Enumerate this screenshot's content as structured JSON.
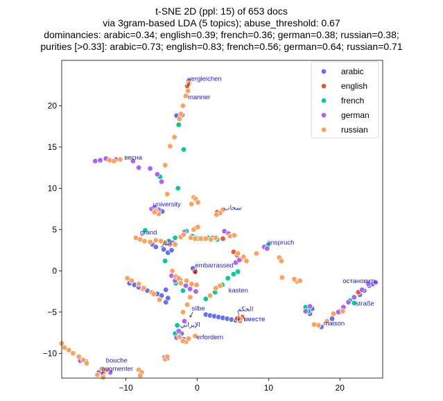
{
  "chart_data": {
    "type": "scatter",
    "title_lines": [
      "t-SNE 2D (ppl: 15) of 653 docs",
      "via 3gram-based LDA (5 topics); abuse_threshold: 0.67",
      "dominancies: arabic=0.34; english=0.39; french=0.36; german=0.38; russian=0.38;",
      "purities [>0.33]: arabic=0.73; english=0.83; french=0.56; german=0.64; russian=0.71"
    ],
    "xlim": [
      -19,
      26
    ],
    "ylim": [
      -13,
      25.5
    ],
    "xticks": [
      -10,
      0,
      10,
      20
    ],
    "yticks": [
      -10,
      -5,
      0,
      5,
      10,
      15,
      20
    ],
    "legend_position": "top-right",
    "series": [
      {
        "name": "arabic",
        "color": "#636efa",
        "points": [
          [
            -9.5,
            -1.5
          ],
          [
            -8.8,
            -1.7
          ],
          [
            -8.2,
            -2.0
          ],
          [
            -7.6,
            -2.2
          ],
          [
            -7.0,
            -2.4
          ],
          [
            -6.3,
            -2.6
          ],
          [
            -5.6,
            -2.8
          ],
          [
            -5.0,
            -3.0
          ],
          [
            -4.4,
            -3.8
          ],
          [
            -6.3,
            3.2
          ],
          [
            -5.8,
            2.9
          ],
          [
            -4.7,
            2.6
          ],
          [
            -4.1,
            2.2
          ],
          [
            -3.6,
            2.5
          ],
          [
            -4.4,
            -2.3
          ],
          [
            -4.1,
            -3.3
          ],
          [
            -2.2,
            -7.6
          ],
          [
            -2.8,
            -7.9
          ],
          [
            -1.9,
            -8.3
          ],
          [
            -2.9,
            18.8
          ],
          [
            -2.1,
            18.9
          ],
          [
            -4.2,
            -10.6
          ],
          [
            1.2,
            -5.3
          ],
          [
            1.8,
            -5.4
          ],
          [
            2.4,
            -5.5
          ],
          [
            3.0,
            -5.6
          ],
          [
            3.6,
            -5.7
          ],
          [
            4.2,
            -5.8
          ],
          [
            4.8,
            -5.9
          ],
          [
            5.4,
            -6.0
          ],
          [
            6.0,
            -6.1
          ],
          [
            15.4,
            -4.8
          ],
          [
            15.8,
            -5.2
          ],
          [
            16.1,
            -4.6
          ],
          [
            14.2,
            -1.2
          ],
          [
            17.4,
            -6.8
          ],
          [
            18.9,
            -5.8
          ],
          [
            20.0,
            -4.9
          ],
          [
            22.8,
            -2.9
          ],
          [
            23.4,
            -2.4
          ],
          [
            24.1,
            -1.8
          ],
          [
            24.6,
            -1.6
          ],
          [
            -13.8,
            -12.3
          ],
          [
            -13.2,
            -12.5
          ],
          [
            -0.4,
            0.0
          ],
          [
            -0.6,
            0.3
          ],
          [
            -5.3,
            7.4
          ],
          [
            -4.9,
            7.2
          ]
        ]
      },
      {
        "name": "english",
        "color": "#ef553b",
        "points": [
          [
            -1.2,
            23.0
          ],
          [
            -1.4,
            22.4
          ],
          [
            3.6,
            3.9
          ],
          [
            5.1,
            2.3
          ],
          [
            5.6,
            1.9
          ],
          [
            6.1,
            1.4
          ],
          [
            -0.3,
            -0.1
          ],
          [
            22.6,
            -2.6
          ],
          [
            2.8,
            7.1
          ],
          [
            5.6,
            -5.8
          ],
          [
            6.3,
            -5.6
          ],
          [
            6.0,
            -6.0
          ]
        ]
      },
      {
        "name": "french",
        "color": "#00cc96",
        "points": [
          [
            -2.6,
            17.7
          ],
          [
            -1.9,
            14.7
          ],
          [
            -5.2,
            11.4
          ],
          [
            -2.7,
            10.0
          ],
          [
            -7.3,
            4.9
          ],
          [
            -4.5,
            1.2
          ],
          [
            -1.5,
            4.8
          ],
          [
            -0.7,
            4.2
          ],
          [
            -0.2,
            4.0
          ],
          [
            0.2,
            3.9
          ],
          [
            0.8,
            3.9
          ],
          [
            1.5,
            4.0
          ],
          [
            2.2,
            4.0
          ],
          [
            2.8,
            3.8
          ],
          [
            -3.0,
            -1.5
          ],
          [
            -2.0,
            -2.4
          ],
          [
            1.2,
            -3.4
          ],
          [
            2.5,
            -2.6
          ],
          [
            3.5,
            -1.7
          ],
          [
            4.3,
            -0.9
          ],
          [
            5.1,
            -0.4
          ],
          [
            5.7,
            -0.1
          ],
          [
            -3.1,
            4.0
          ],
          [
            -4.0,
            3.6
          ],
          [
            15.2,
            -4.4
          ],
          [
            15.6,
            -4.9
          ],
          [
            21.4,
            -3.6
          ],
          [
            22.0,
            -3.9
          ],
          [
            -2.8,
            -6.6
          ],
          [
            -3.1,
            -7.6
          ],
          [
            9.6,
            2.8
          ],
          [
            9.9,
            3.1
          ]
        ]
      },
      {
        "name": "german",
        "color": "#ab63fa",
        "points": [
          [
            -14.3,
            13.3
          ],
          [
            -13.6,
            13.4
          ],
          [
            -12.8,
            13.6
          ],
          [
            -11.4,
            13.5
          ],
          [
            -9.0,
            13.3
          ],
          [
            -8.2,
            12.5
          ],
          [
            -6.6,
            12.4
          ],
          [
            -5.6,
            11.7
          ],
          [
            -5.0,
            10.8
          ],
          [
            -6.4,
            7.5
          ],
          [
            -6.0,
            7.7
          ],
          [
            -5.4,
            7.4
          ],
          [
            -1.8,
            4.7
          ],
          [
            -2.4,
            4.1
          ],
          [
            -3.4,
            3.4
          ],
          [
            -3.6,
            -0.6
          ],
          [
            -3.1,
            -1.2
          ],
          [
            -2.4,
            -1.1
          ],
          [
            -1.6,
            -1.8
          ],
          [
            -1.0,
            -2.2
          ],
          [
            -0.2,
            -2.5
          ],
          [
            3.8,
            4.8
          ],
          [
            4.4,
            4.5
          ],
          [
            5.4,
            1.0
          ],
          [
            5.9,
            1.3
          ],
          [
            9.4,
            2.9
          ],
          [
            9.8,
            2.7
          ],
          [
            15.2,
            -4.9
          ],
          [
            15.8,
            -4.3
          ],
          [
            19.8,
            -5.0
          ],
          [
            20.5,
            -4.4
          ],
          [
            21.2,
            -3.8
          ],
          [
            22.0,
            -3.2
          ],
          [
            23.1,
            -2.3
          ],
          [
            24.0,
            -1.6
          ],
          [
            25.0,
            -1.4
          ],
          [
            -1.8,
            -6.1
          ],
          [
            -2.6,
            -7.3
          ],
          [
            -2.9,
            -8.1
          ],
          [
            -15.6,
            -11.0
          ],
          [
            -16.4,
            -10.9
          ],
          [
            -12.6,
            -12.0
          ],
          [
            -12.2,
            -12.3
          ],
          [
            -4.6,
            -10.5
          ]
        ]
      },
      {
        "name": "russian",
        "color": "#ffa15a",
        "points": [
          [
            -1.2,
            22.7
          ],
          [
            -1.3,
            21.8
          ],
          [
            -1.6,
            21.2
          ],
          [
            -2.0,
            20.0
          ],
          [
            -2.3,
            19.0
          ],
          [
            -2.5,
            18.4
          ],
          [
            -3.2,
            16.2
          ],
          [
            -3.8,
            15.1
          ],
          [
            -4.5,
            12.8
          ],
          [
            -4.2,
            9.3
          ],
          [
            -10.8,
            13.5
          ],
          [
            -11.7,
            13.3
          ],
          [
            -12.3,
            13.4
          ],
          [
            -0.5,
            8.9
          ],
          [
            -0.2,
            8.7
          ],
          [
            0.1,
            8.3
          ],
          [
            -0.8,
            8.1
          ],
          [
            3.6,
            7.4
          ],
          [
            3.2,
            7.0
          ],
          [
            2.7,
            6.8
          ],
          [
            -0.2,
            5.2
          ],
          [
            -0.5,
            5.0
          ],
          [
            0.1,
            5.3
          ],
          [
            -8.6,
            4.0
          ],
          [
            -8.0,
            3.8
          ],
          [
            -7.4,
            3.6
          ],
          [
            -6.6,
            3.5
          ],
          [
            -5.8,
            3.7
          ],
          [
            -5.1,
            3.6
          ],
          [
            -4.5,
            3.4
          ],
          [
            -3.8,
            3.2
          ],
          [
            -3.1,
            3.2
          ],
          [
            -2.3,
            4.1
          ],
          [
            -1.9,
            4.4
          ],
          [
            -0.9,
            4.0
          ],
          [
            -0.3,
            3.9
          ],
          [
            0.5,
            3.9
          ],
          [
            1.2,
            3.9
          ],
          [
            1.9,
            3.8
          ],
          [
            2.6,
            4.0
          ],
          [
            4.6,
            4.2
          ],
          [
            5.2,
            4.3
          ],
          [
            5.7,
            2.1
          ],
          [
            6.5,
            1.7
          ],
          [
            6.9,
            1.2
          ],
          [
            8.3,
            2.1
          ],
          [
            -5.4,
            6.9
          ],
          [
            -5.8,
            7.3
          ],
          [
            -6.0,
            7.1
          ],
          [
            -9.8,
            -0.9
          ],
          [
            -9.2,
            -1.2
          ],
          [
            -8.2,
            -1.6
          ],
          [
            -7.5,
            -2.1
          ],
          [
            -6.4,
            -2.6
          ],
          [
            -6.1,
            -2.8
          ],
          [
            -5.3,
            -3.5
          ],
          [
            -3.5,
            0.0
          ],
          [
            -3.0,
            -0.7
          ],
          [
            -2.6,
            -0.9
          ],
          [
            -2.3,
            -1.5
          ],
          [
            -1.5,
            -1.2
          ],
          [
            -0.8,
            -1.6
          ],
          [
            -0.1,
            -1.7
          ],
          [
            -2.0,
            -5.0
          ],
          [
            -1.4,
            -4.1
          ],
          [
            -1.0,
            -3.2
          ],
          [
            -2.5,
            -8.0
          ],
          [
            -1.6,
            -8.6
          ],
          [
            -1.2,
            -8.2
          ],
          [
            -0.3,
            -7.9
          ],
          [
            -2.0,
            -8.5
          ],
          [
            1.8,
            -3.0
          ],
          [
            2.6,
            -2.1
          ],
          [
            3.2,
            -1.8
          ],
          [
            11.5,
            1.6
          ],
          [
            11.8,
            1.2
          ],
          [
            11.9,
            -0.8
          ],
          [
            14.0,
            -1.3
          ],
          [
            13.6,
            -1.0
          ],
          [
            14.4,
            -1.2
          ],
          [
            17.0,
            -6.6
          ],
          [
            16.4,
            -6.5
          ],
          [
            18.2,
            -6.1
          ],
          [
            19.1,
            -5.2
          ],
          [
            20.4,
            -4.9
          ],
          [
            -4.5,
            -10.7
          ],
          [
            -4.2,
            -10.4
          ],
          [
            -19.0,
            -8.8
          ],
          [
            -18.6,
            -9.3
          ],
          [
            -18.0,
            -9.6
          ],
          [
            -17.4,
            -10.0
          ],
          [
            -16.6,
            -10.4
          ],
          [
            -16.0,
            -10.8
          ],
          [
            -15.5,
            -11.2
          ],
          [
            -13.4,
            -11.9
          ],
          [
            -13.0,
            -12.2
          ],
          [
            -12.6,
            -12.0
          ],
          [
            -14.0,
            -12.6
          ],
          [
            -13.2,
            -12.9
          ],
          [
            -8.2,
            -12.0
          ],
          [
            -7.8,
            -12.3
          ],
          [
            -8.0,
            -12.7
          ],
          [
            6.0,
            -5.8
          ]
        ]
      }
    ],
    "annotations": [
      {
        "text": "vergleichen",
        "x": -1.3,
        "y": 23.0,
        "tx": -1.3,
        "ty": 22.4,
        "arrow": true
      },
      {
        "text": "manner",
        "x": -1.3,
        "y": 20.8,
        "arrow": false
      },
      {
        "text": "весна",
        "x": -10.2,
        "y": 13.5,
        "arrow": false
      },
      {
        "text": "university",
        "x": -6.2,
        "y": 7.8,
        "arrow": false
      },
      {
        "text": "سحاب",
        "x": 3.7,
        "y": 7.4,
        "arrow": false
      },
      {
        "text": "grand",
        "x": -8.0,
        "y": 4.4,
        "arrow": false
      },
      {
        "text": "النار",
        "x": -5.1,
        "y": 3.1,
        "arrow": false
      },
      {
        "text": "anspruch",
        "x": 9.8,
        "y": 3.2,
        "arrow": false
      },
      {
        "text": "embarrassed",
        "x": -0.3,
        "y": 0.4,
        "tx": -0.3,
        "ty": -0.3,
        "arrow": true
      },
      {
        "text": "kasten",
        "x": 4.4,
        "y": -2.6,
        "arrow": false
      },
      {
        "text": "остановить",
        "x": 20.4,
        "y": -1.5,
        "arrow": false
      },
      {
        "text": "straße",
        "x": 22.2,
        "y": -4.2,
        "arrow": false
      },
      {
        "text": "silbe",
        "x": -0.8,
        "y": -4.8,
        "tx": -1.0,
        "ty": -5.6,
        "arrow": true
      },
      {
        "text": "الحكم",
        "x": 5.6,
        "y": -4.9,
        "tx": 5.8,
        "ty": -6.0,
        "arrow": true
      },
      {
        "text": "вместе",
        "x": 6.5,
        "y": -6.1,
        "arrow": false
      },
      {
        "text": "maison",
        "x": 17.7,
        "y": -6.6,
        "arrow": false
      },
      {
        "text": "الإيراني",
        "x": -2.4,
        "y": -6.8,
        "arrow": false
      },
      {
        "text": "erfordern",
        "x": -0.1,
        "y": -8.3,
        "arrow": false
      },
      {
        "text": "bouche",
        "x": -12.8,
        "y": -11.1,
        "arrow": false
      },
      {
        "text": "augmenter",
        "x": -13.4,
        "y": -12.1,
        "tx": -13.3,
        "ty": -12.4,
        "arrow": true
      }
    ]
  }
}
